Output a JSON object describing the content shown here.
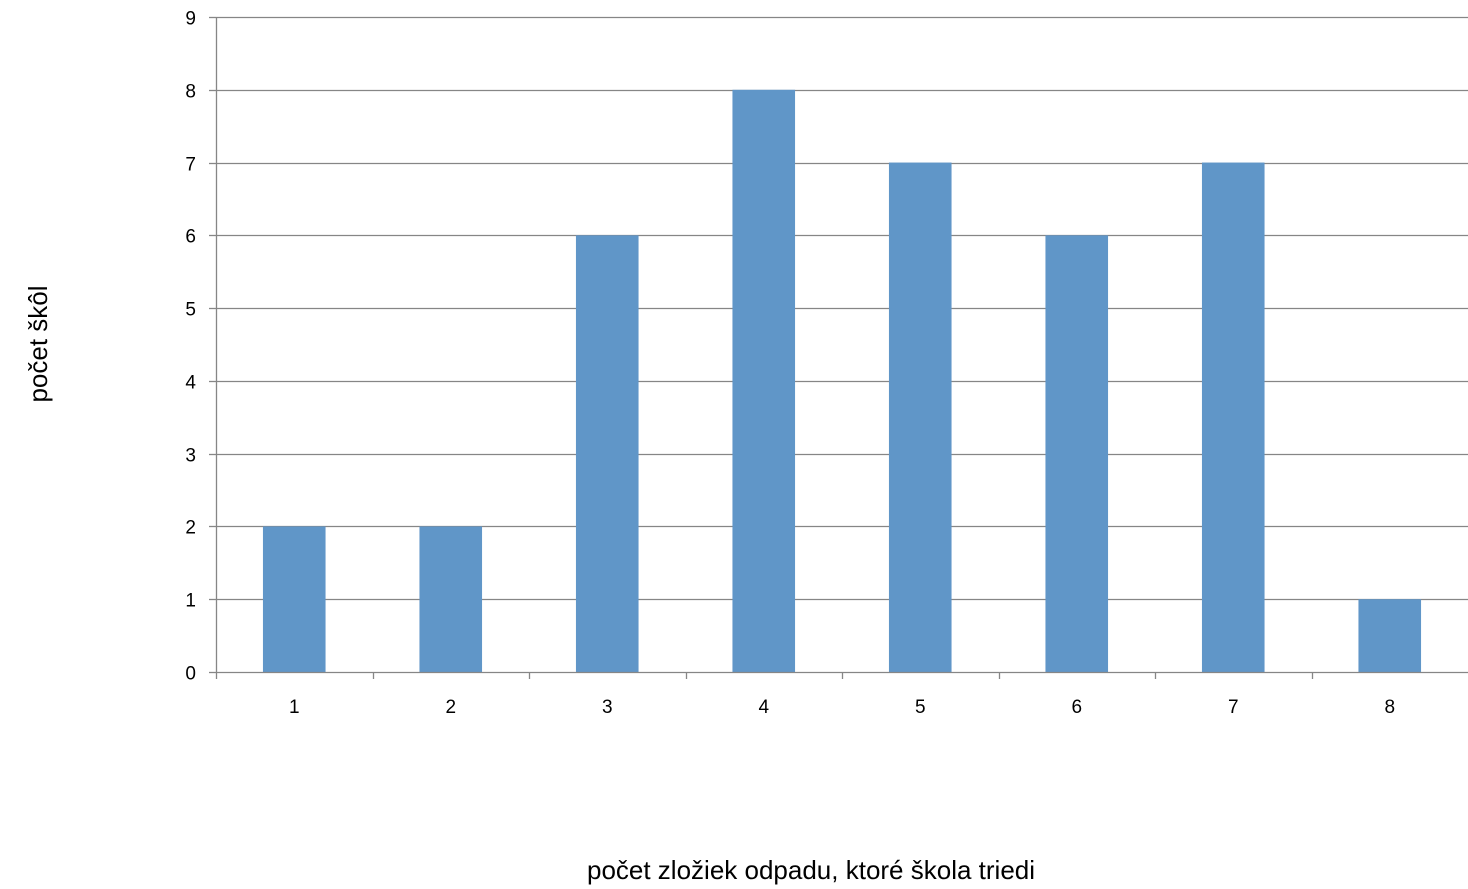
{
  "chart_data": {
    "type": "bar",
    "categories": [
      "1",
      "2",
      "3",
      "4",
      "5",
      "6",
      "7",
      "8"
    ],
    "values": [
      2,
      2,
      6,
      8,
      7,
      6,
      7,
      1
    ],
    "title": "",
    "xlabel": "počet zložiek odpadu, ktoré škola triedi",
    "ylabel": "počet škôl",
    "ylim": [
      0,
      9
    ],
    "yticks": [
      0,
      1,
      2,
      3,
      4,
      5,
      6,
      7,
      8,
      9
    ],
    "grid": true,
    "legend": "none",
    "colors": {
      "bar": "#6096c8",
      "grid": "#868686",
      "axis": "#868686"
    }
  }
}
